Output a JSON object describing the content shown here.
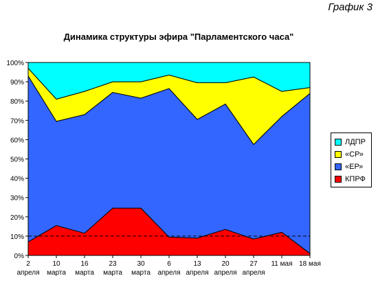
{
  "corner_label": "График 3",
  "chart_data": {
    "type": "area",
    "stacked": true,
    "title": "Динамика структуры эфира \"Парламентского часа\"",
    "xlabel": "",
    "ylabel": "",
    "ylim": [
      0,
      100
    ],
    "y_ticks": [
      "0%",
      "10%",
      "20%",
      "30%",
      "40%",
      "50%",
      "60%",
      "70%",
      "80%",
      "90%",
      "100%"
    ],
    "categories": [
      [
        "2",
        "апреля"
      ],
      [
        "10",
        "марта"
      ],
      [
        "16",
        "марта"
      ],
      [
        "23",
        "марта"
      ],
      [
        "30",
        "марта"
      ],
      [
        "6",
        "апреля"
      ],
      [
        "13",
        "апреля"
      ],
      [
        "20",
        "апреля"
      ],
      [
        "27",
        "апреля"
      ],
      [
        "11 мая",
        ""
      ],
      [
        "18 мая",
        ""
      ]
    ],
    "series": [
      {
        "name": "КПРФ",
        "color": "#ff0000",
        "values": [
          7,
          15.5,
          11.5,
          24.5,
          24.5,
          9.5,
          9,
          13.5,
          8.5,
          12,
          1
        ]
      },
      {
        "name": "«ЕР»",
        "color": "#3366ff",
        "values": [
          86,
          54,
          61.5,
          60,
          57,
          77,
          61.5,
          65,
          49,
          60,
          83
        ]
      },
      {
        "name": "«СР»",
        "color": "#ffff00",
        "values": [
          4,
          11.5,
          12,
          5.5,
          8.5,
          7,
          19,
          11,
          35,
          13,
          3
        ]
      },
      {
        "name": "ЛДПР",
        "color": "#00ffff",
        "values": [
          3,
          19,
          15,
          10,
          10,
          6.5,
          10.5,
          10.5,
          7.5,
          15,
          13
        ]
      }
    ],
    "reference_line": {
      "value": 10,
      "style": "dashed"
    },
    "legend": {
      "position": "right",
      "order": [
        "ЛДПР",
        "«СР»",
        "«ЕР»",
        "КПРФ"
      ]
    },
    "grid": false
  }
}
